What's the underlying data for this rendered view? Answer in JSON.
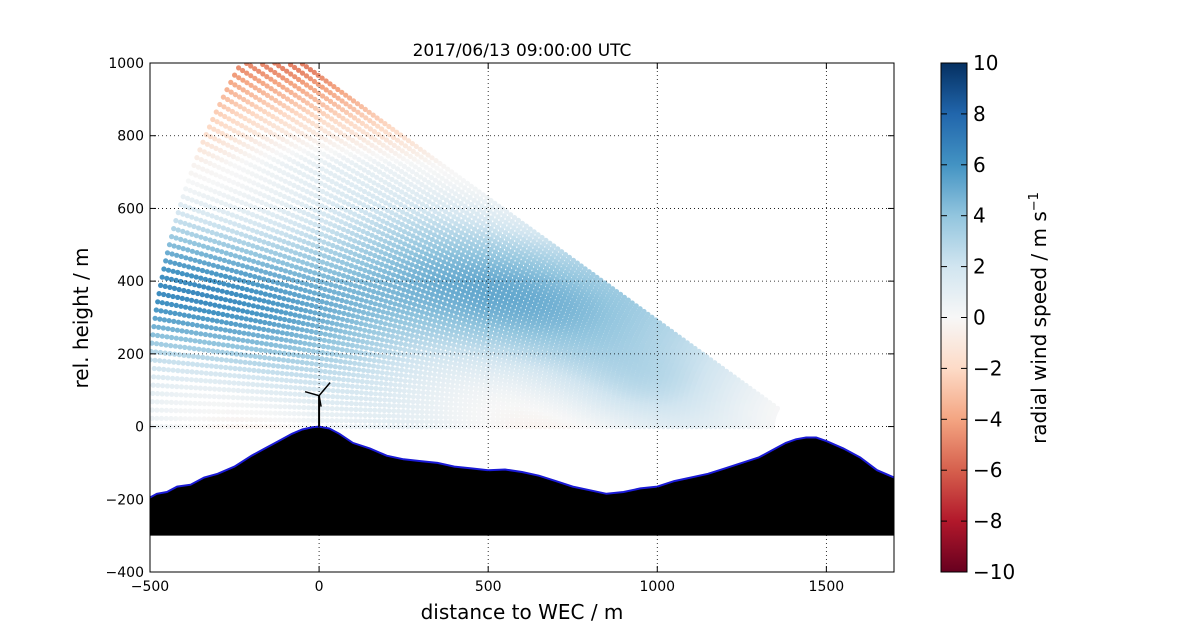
{
  "chart_data": {
    "type": "scatter",
    "subtype": "radar RHI scan (polar sampling, color-coded radial wind speed)",
    "title": "2017/06/13 09:00:00 UTC",
    "xlabel": "distance to WEC / m",
    "ylabel": "rel. height / m",
    "xlim": [
      -500,
      1700
    ],
    "ylim": [
      -400,
      1000
    ],
    "xticks": [
      "−500",
      "0",
      "500",
      "1000",
      "1500"
    ],
    "yticks": [
      "−400",
      "−200",
      "0",
      "200",
      "400",
      "600",
      "800",
      "1000"
    ],
    "grid": "dotted",
    "scan": {
      "origin_x": 1430,
      "origin_y": 0,
      "max_range": 1950,
      "elevation_deg_min": 0,
      "elevation_deg_max": 34,
      "range_gate_spacing": 14,
      "elevation_step_deg": 0.68
    },
    "wind_field_notes": "positive (blue) core ~4-6 m/s at 250-450 m height, strongest upwind near x=-500..700; negative (red) -4..-6 m/s above ~900 m in the west, weak -1..-2 aloft east; near-zero at surface and 600-700 m band",
    "terrain": {
      "x": [
        -500,
        -480,
        -450,
        -420,
        -380,
        -340,
        -300,
        -250,
        -200,
        -160,
        -120,
        -80,
        -50,
        -20,
        0,
        30,
        60,
        100,
        150,
        200,
        250,
        300,
        350,
        400,
        450,
        500,
        550,
        600,
        650,
        700,
        750,
        800,
        850,
        900,
        950,
        1000,
        1050,
        1100,
        1150,
        1200,
        1250,
        1300,
        1350,
        1380,
        1410,
        1440,
        1470,
        1500,
        1550,
        1600,
        1650,
        1700
      ],
      "y": [
        -195,
        -185,
        -180,
        -165,
        -160,
        -140,
        -130,
        -110,
        -80,
        -60,
        -40,
        -20,
        -8,
        -2,
        0,
        -5,
        -20,
        -45,
        -60,
        -80,
        -90,
        -95,
        -100,
        -110,
        -115,
        -120,
        -118,
        -125,
        -135,
        -150,
        -165,
        -175,
        -185,
        -180,
        -170,
        -165,
        -150,
        -140,
        -130,
        -115,
        -100,
        -85,
        -60,
        -45,
        -35,
        -30,
        -30,
        -40,
        -60,
        -85,
        -120,
        -140
      ],
      "base": -300,
      "fill": "#000000",
      "outline": "#1a1ad6"
    },
    "turbine": {
      "x": 0,
      "hub_height": 85,
      "label": ""
    },
    "colorbar": {
      "label": "radial wind speed / m s",
      "label_superscript": "−1",
      "min": -10,
      "max": 10,
      "ticks": [
        "10",
        "8",
        "6",
        "4",
        "2",
        "0",
        "−2",
        "−4",
        "−6",
        "−8",
        "−10"
      ],
      "colormap": "RdBu",
      "colors": [
        "#67001f",
        "#b2182b",
        "#d6604d",
        "#f4a582",
        "#fddbc7",
        "#f7f7f7",
        "#d1e5f0",
        "#92c5de",
        "#4393c3",
        "#2166ac",
        "#053061"
      ]
    }
  }
}
